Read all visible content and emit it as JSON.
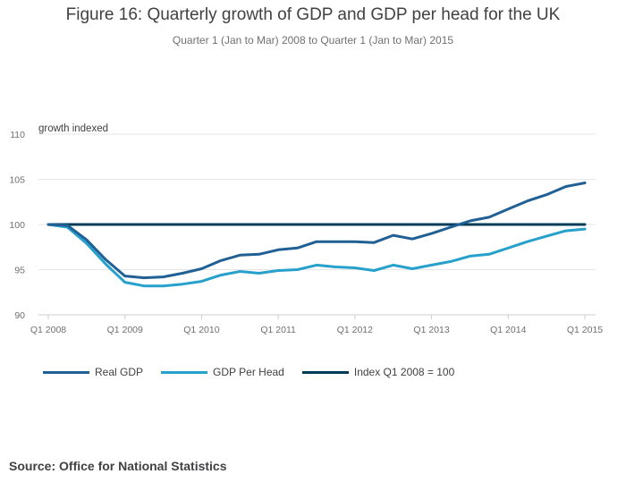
{
  "chart_data": {
    "type": "line",
    "title": "Figure 16: Quarterly growth of GDP and GDP per head for the UK",
    "subtitle": "Quarter 1 (Jan to Mar) 2008 to Quarter 1 (Jan to Mar) 2015",
    "ylabel": "growth indexed",
    "ylim": [
      90,
      110
    ],
    "yticks": [
      90,
      95,
      100,
      105,
      110
    ],
    "grid": true,
    "legend_position": "bottom-left",
    "x": [
      "Q1 2008",
      "Q2 2008",
      "Q3 2008",
      "Q4 2008",
      "Q1 2009",
      "Q2 2009",
      "Q3 2009",
      "Q4 2009",
      "Q1 2010",
      "Q2 2010",
      "Q3 2010",
      "Q4 2010",
      "Q1 2011",
      "Q2 2011",
      "Q3 2011",
      "Q4 2011",
      "Q1 2012",
      "Q2 2012",
      "Q3 2012",
      "Q4 2012",
      "Q1 2013",
      "Q2 2013",
      "Q3 2013",
      "Q4 2013",
      "Q1 2014",
      "Q2 2014",
      "Q3 2014",
      "Q4 2014",
      "Q1 2015"
    ],
    "xtick_labels": [
      "Q1 2008",
      "Q1 2009",
      "Q1 2010",
      "Q1 2011",
      "Q1 2012",
      "Q1 2013",
      "Q1 2014",
      "Q1 2015"
    ],
    "series": [
      {
        "name": "Real GDP",
        "color": "#206095",
        "values": [
          100.0,
          99.9,
          98.3,
          96.1,
          94.3,
          94.1,
          94.2,
          94.6,
          95.1,
          96.0,
          96.6,
          96.7,
          97.2,
          97.4,
          98.1,
          98.1,
          98.1,
          98.0,
          98.8,
          98.4,
          99.0,
          99.7,
          100.4,
          100.8,
          101.7,
          102.6,
          103.3,
          104.2,
          104.6
        ]
      },
      {
        "name": "GDP Per Head",
        "color": "#27a0cc",
        "values": [
          100.0,
          99.7,
          97.9,
          95.6,
          93.6,
          93.2,
          93.2,
          93.4,
          93.7,
          94.4,
          94.8,
          94.6,
          94.9,
          95.0,
          95.5,
          95.3,
          95.2,
          94.9,
          95.5,
          95.1,
          95.5,
          95.9,
          96.5,
          96.7,
          97.4,
          98.1,
          98.7,
          99.3,
          99.5
        ]
      },
      {
        "name": "Index Q1 2008 = 100",
        "color": "#003c57",
        "values": [
          100,
          100,
          100,
          100,
          100,
          100,
          100,
          100,
          100,
          100,
          100,
          100,
          100,
          100,
          100,
          100,
          100,
          100,
          100,
          100,
          100,
          100,
          100,
          100,
          100,
          100,
          100,
          100,
          100
        ]
      }
    ]
  },
  "source": "Source: Office for National Statistics"
}
